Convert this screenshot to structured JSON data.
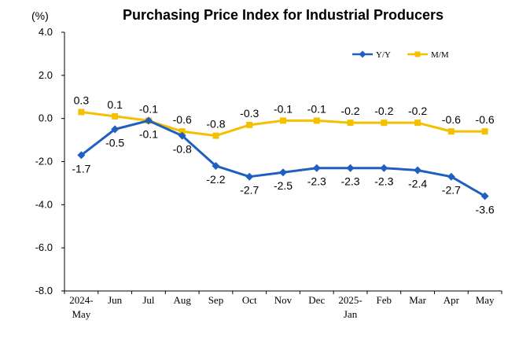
{
  "chart_data": {
    "type": "line",
    "title": "Purchasing Price Index for Industrial Producers",
    "unit": "(%)",
    "categories": [
      [
        "2024-",
        "May"
      ],
      [
        "Jun"
      ],
      [
        "Jul"
      ],
      [
        "Aug"
      ],
      [
        "Sep"
      ],
      [
        "Oct"
      ],
      [
        "Nov"
      ],
      [
        "Dec"
      ],
      [
        "2025-",
        "Jan"
      ],
      [
        "Feb"
      ],
      [
        "Mar"
      ],
      [
        "Apr"
      ],
      [
        "May"
      ]
    ],
    "y_ticks": [
      "4.0",
      "2.0",
      "0.0",
      "-2.0",
      "-4.0",
      "-6.0",
      "-8.0"
    ],
    "ylim": [
      -8.0,
      4.0
    ],
    "grid": false,
    "legend_position": "top-right",
    "series": [
      {
        "name": "Y/Y",
        "color": "#1f5fbf",
        "marker": "diamond",
        "values": [
          -1.7,
          -0.5,
          -0.1,
          -0.8,
          -2.2,
          -2.7,
          -2.5,
          -2.3,
          -2.3,
          -2.3,
          -2.4,
          -2.7,
          -3.6
        ],
        "labels": [
          "-1.7",
          "-0.5",
          "-0.1",
          "-0.8",
          "-2.2",
          "-2.7",
          "-2.5",
          "-2.3",
          "-2.3",
          "-2.3",
          "-2.4",
          "-2.7",
          "-3.6"
        ]
      },
      {
        "name": "M/M",
        "color": "#f5c000",
        "marker": "square",
        "values": [
          0.3,
          0.1,
          -0.1,
          -0.6,
          -0.8,
          -0.3,
          -0.1,
          -0.1,
          -0.2,
          -0.2,
          -0.2,
          -0.6,
          -0.6
        ],
        "labels": [
          "0.3",
          "0.1",
          "-0.1",
          "-0.6",
          "-0.8",
          "-0.3",
          "-0.1",
          "-0.1",
          "-0.2",
          "-0.2",
          "-0.2",
          "-0.6",
          "-0.6"
        ]
      }
    ]
  }
}
